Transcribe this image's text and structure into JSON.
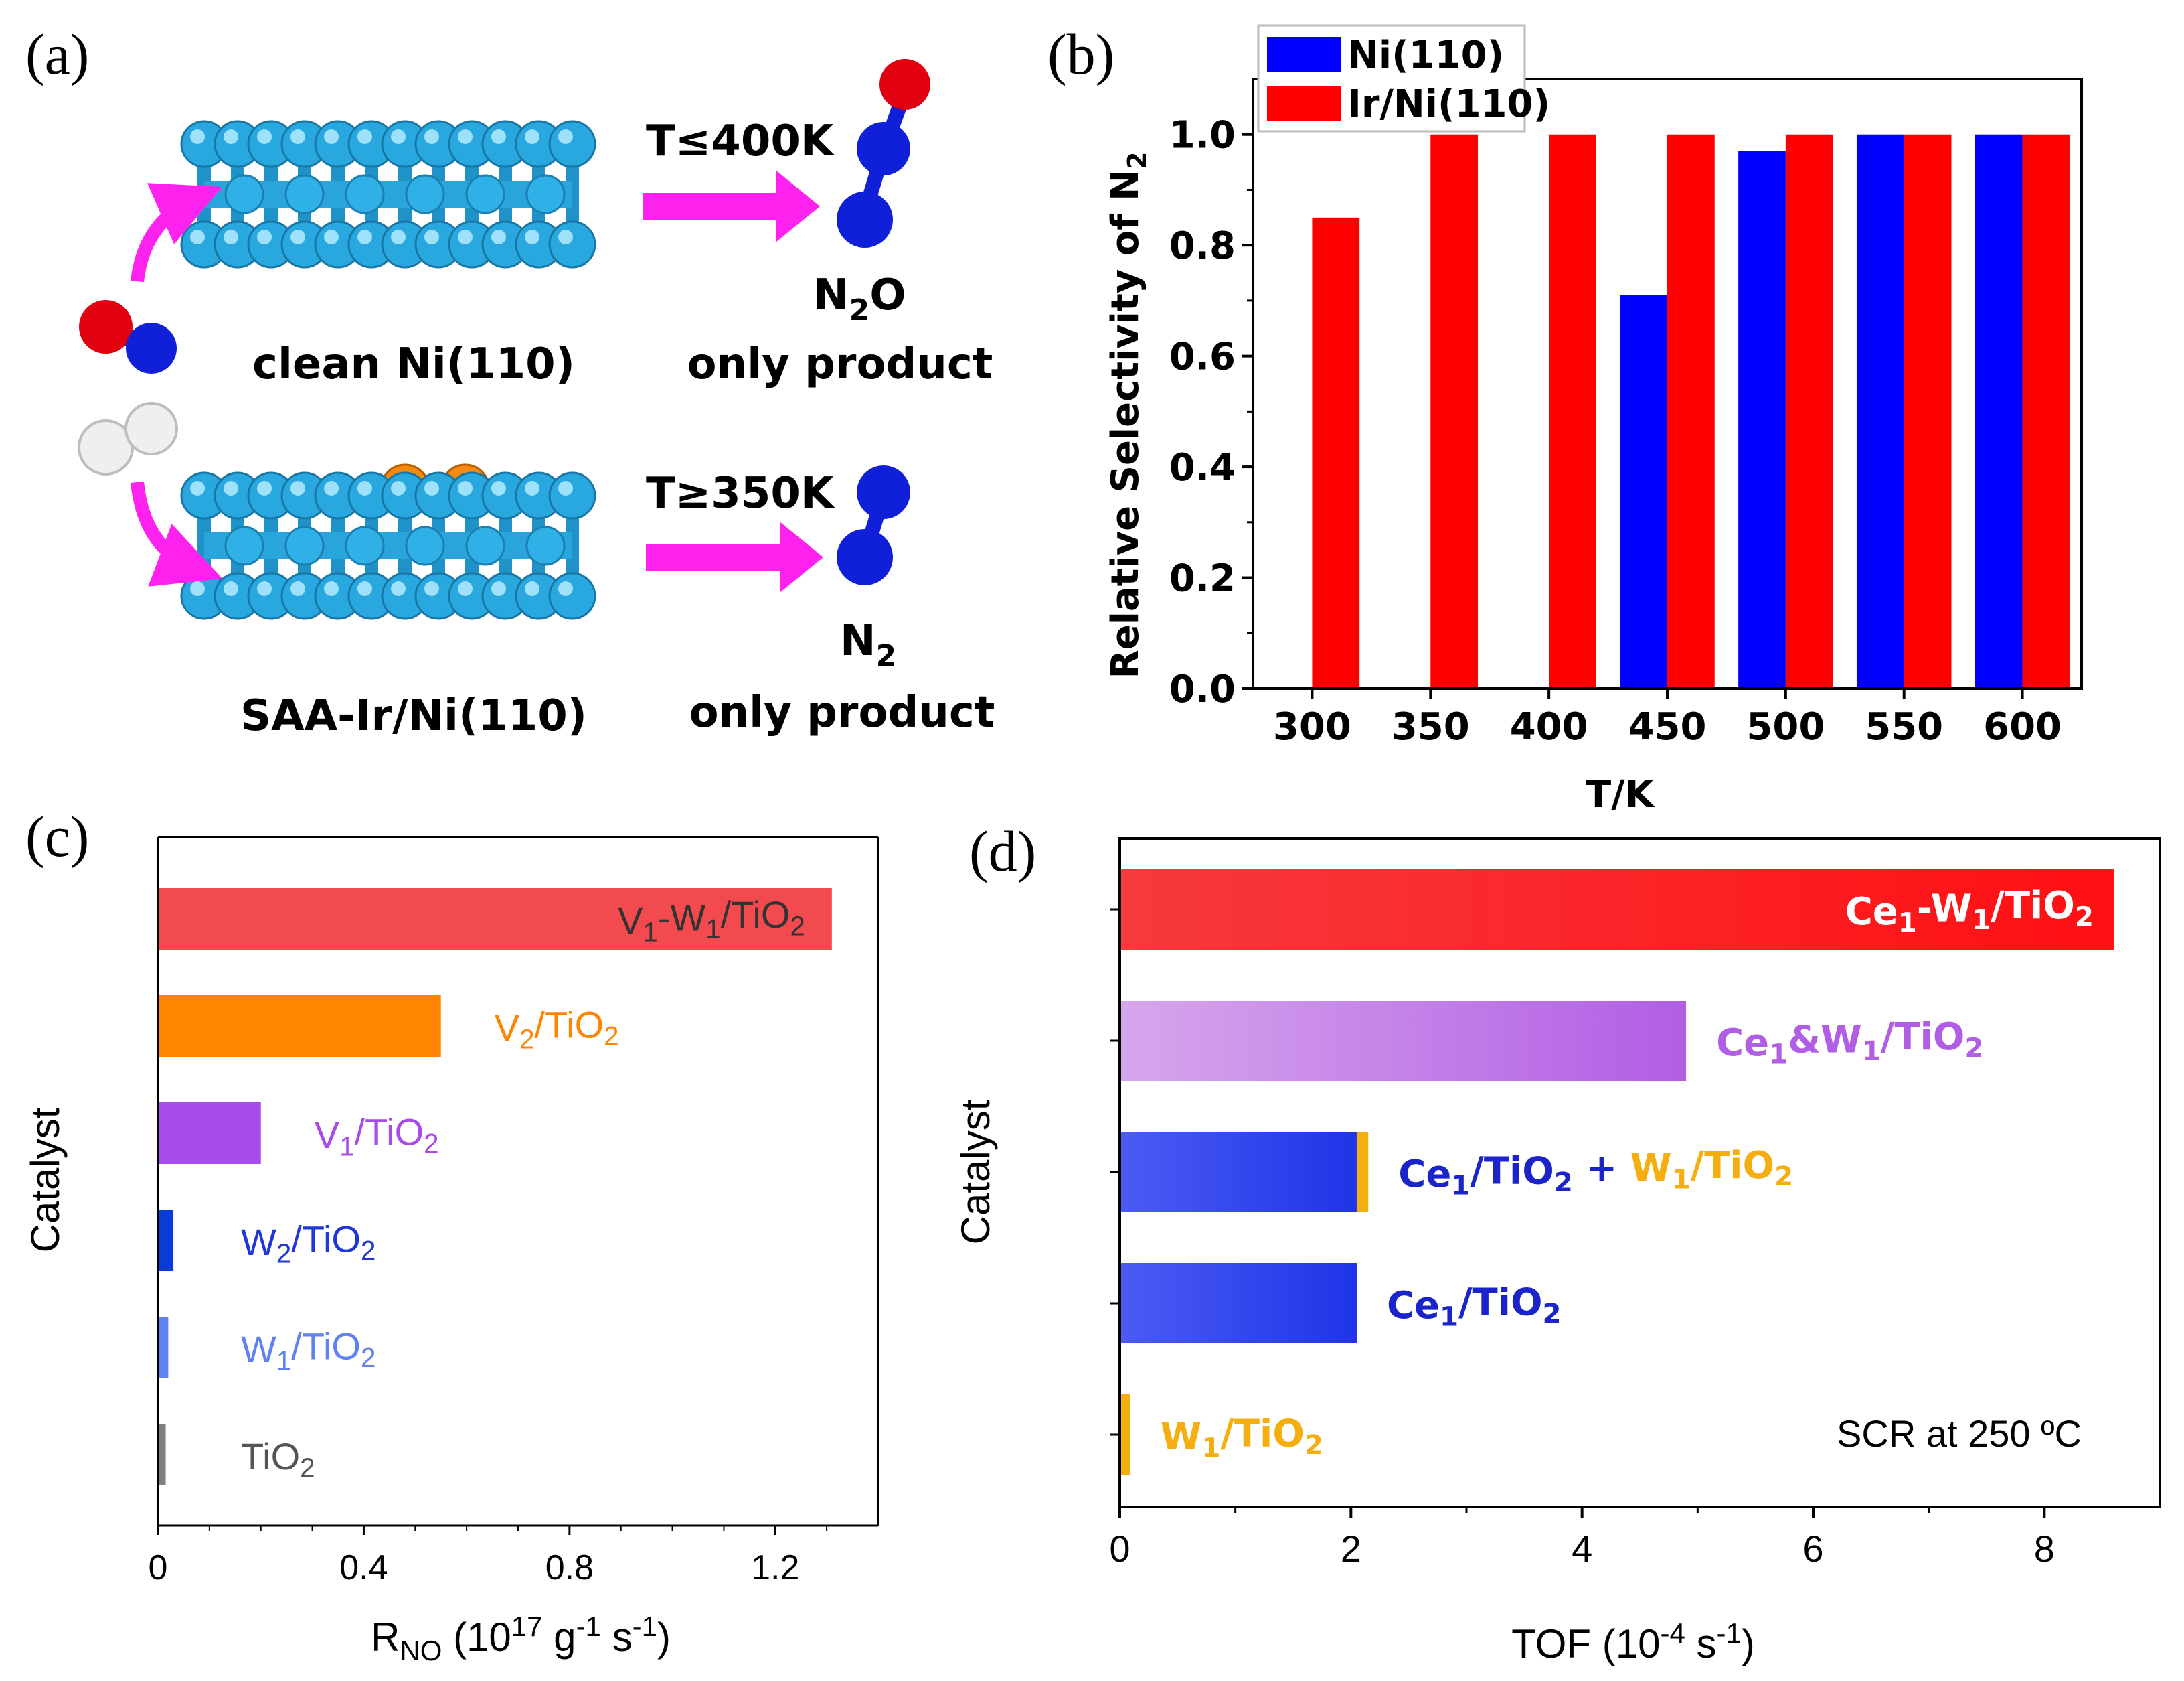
{
  "panel_labels": {
    "a": "(a)",
    "b": "(b)",
    "c": "(c)",
    "d": "(d)"
  },
  "scheme": {
    "top_condition": "T≤400K",
    "top_surface": "clean Ni(110)",
    "top_product": "N",
    "top_product_sub": "2",
    "top_product_tail": "O",
    "top_product_note": "only product",
    "bottom_condition": "T≥350K",
    "bottom_surface": "SAA-Ir/Ni(110)",
    "bottom_product": "N",
    "bottom_product_sub": "2",
    "bottom_product_note": "only product",
    "colors": {
      "ni": "#29a8e0",
      "ir": "#f58a12",
      "o": "#e0000f",
      "n": "#1020d8",
      "h": "#f0f0f0",
      "arrow": "#ff22ee"
    }
  },
  "chart_data": [
    {
      "panel": "b",
      "type": "bar",
      "title": "",
      "xlabel": "T/K",
      "ylabel": "Relative Selectivity of N",
      "ylabel_sub": "2",
      "categories": [
        "300",
        "350",
        "400",
        "450",
        "500",
        "550",
        "600"
      ],
      "series": [
        {
          "name": "Ni(110)",
          "color": "#0000ff",
          "values": [
            0,
            0,
            0,
            0.71,
            0.97,
            1.0,
            1.0
          ]
        },
        {
          "name": "Ir/Ni(110)",
          "color": "#ff0000",
          "values": [
            0.85,
            1.0,
            1.0,
            1.0,
            1.0,
            1.0,
            1.0
          ]
        }
      ],
      "ylim": [
        0,
        1.1
      ],
      "yticks": [
        "0.0",
        "0.2",
        "0.4",
        "0.6",
        "0.8",
        "1.0"
      ],
      "legend": "top-left"
    },
    {
      "panel": "c",
      "type": "bar",
      "orientation": "horizontal",
      "ylabel": "Catalyst",
      "xlabel": "R",
      "xlabel_sub": "NO",
      "xlabel_tail": " (10",
      "xlabel_sup1": "17",
      "xlabel_mid": " g",
      "xlabel_sup2": "-1",
      "xlabel_end": " s",
      "xlabel_sup3": "-1",
      "xlabel_close": ")",
      "xlim": [
        0,
        1.4
      ],
      "xticks": [
        "0",
        "0.4",
        "0.8",
        "1.2"
      ],
      "bars": [
        {
          "parts": [
            {
              "t": "V"
            },
            {
              "t": "1",
              "sub": true
            },
            {
              "t": "-W"
            },
            {
              "t": "1",
              "sub": true
            },
            {
              "t": "/TiO"
            },
            {
              "t": "2",
              "sub": true
            }
          ],
          "value": 1.31,
          "color": "#f24a4f",
          "label_color": "#333333",
          "label_inside": true
        },
        {
          "parts": [
            {
              "t": "V"
            },
            {
              "t": "2",
              "sub": true
            },
            {
              "t": "/TiO"
            },
            {
              "t": "2",
              "sub": true
            }
          ],
          "value": 0.55,
          "color": "#ff8400",
          "label_color": "#ff8400"
        },
        {
          "parts": [
            {
              "t": "V"
            },
            {
              "t": "1",
              "sub": true
            },
            {
              "t": "/TiO"
            },
            {
              "t": "2",
              "sub": true
            }
          ],
          "value": 0.2,
          "color": "#a94bea",
          "label_color": "#a94bea"
        },
        {
          "parts": [
            {
              "t": "W"
            },
            {
              "t": "2",
              "sub": true
            },
            {
              "t": "/TiO"
            },
            {
              "t": "2",
              "sub": true
            }
          ],
          "value": 0.03,
          "color": "#0a3ad8",
          "label_color": "#1f37d8"
        },
        {
          "parts": [
            {
              "t": "W"
            },
            {
              "t": "1",
              "sub": true
            },
            {
              "t": "/TiO"
            },
            {
              "t": "2",
              "sub": true
            }
          ],
          "value": 0.02,
          "color": "#5f82f2",
          "label_color": "#5f82f2"
        },
        {
          "parts": [
            {
              "t": "TiO"
            },
            {
              "t": "2",
              "sub": true
            }
          ],
          "value": 0.015,
          "color": "#808080",
          "label_color": "#555555"
        }
      ]
    },
    {
      "panel": "d",
      "type": "bar",
      "orientation": "horizontal",
      "ylabel": "Catalyst",
      "xlabel": "TOF (10",
      "xlabel_sup": "-4",
      "xlabel_tail": " s",
      "xlabel_sup2": "-1",
      "xlabel_close": ")",
      "xlim": [
        0,
        9
      ],
      "xticks": [
        "0",
        "2",
        "4",
        "6",
        "8"
      ],
      "annotation": "SCR at 250 ºC",
      "bars": [
        {
          "parts": [
            {
              "t": "Ce"
            },
            {
              "t": "1",
              "sub": true
            },
            {
              "t": "-W"
            },
            {
              "t": "1",
              "sub": true
            },
            {
              "t": "/TiO"
            },
            {
              "t": "2",
              "sub": true
            }
          ],
          "value": 8.6,
          "grad": [
            "#f63a3e",
            "#ff0f12"
          ],
          "label_color": "#ffffff",
          "label_inside": true
        },
        {
          "parts": [
            {
              "t": "Ce"
            },
            {
              "t": "1",
              "sub": true
            },
            {
              "t": "&W"
            },
            {
              "t": "1",
              "sub": true
            },
            {
              "t": "/TiO"
            },
            {
              "t": "2",
              "sub": true
            }
          ],
          "value": 4.9,
          "grad": [
            "#d7a6ec",
            "#b15ee4"
          ],
          "label_color": "#b15ee4"
        },
        {
          "parts": [
            {
              "t": "Ce"
            },
            {
              "t": "1",
              "sub": true
            },
            {
              "t": "/TiO"
            },
            {
              "t": "2",
              "sub": true
            },
            {
              "t": " + "
            },
            {
              "t": "W",
              "c": "#f5ae10"
            },
            {
              "t": "1",
              "sub": true,
              "c": "#f5ae10"
            },
            {
              "t": "/TiO",
              "c": "#f5ae10"
            },
            {
              "t": "2",
              "sub": true,
              "c": "#f5ae10"
            }
          ],
          "value": 2.05,
          "extra": 0.1,
          "extra_color": "#f5ae10",
          "grad": [
            "#4b5cf2",
            "#1f34e8"
          ],
          "label_color": "#1a24c8"
        },
        {
          "parts": [
            {
              "t": "Ce"
            },
            {
              "t": "1",
              "sub": true
            },
            {
              "t": "/TiO"
            },
            {
              "t": "2",
              "sub": true
            }
          ],
          "value": 2.05,
          "grad": [
            "#4b5cf2",
            "#1f34e8"
          ],
          "label_color": "#1a24c8"
        },
        {
          "parts": [
            {
              "t": "W"
            },
            {
              "t": "1",
              "sub": true
            },
            {
              "t": "/TiO"
            },
            {
              "t": "2",
              "sub": true
            }
          ],
          "value": 0.09,
          "grad": [
            "#f5ae10",
            "#f5ae10"
          ],
          "label_color": "#f5ae10"
        }
      ]
    }
  ]
}
